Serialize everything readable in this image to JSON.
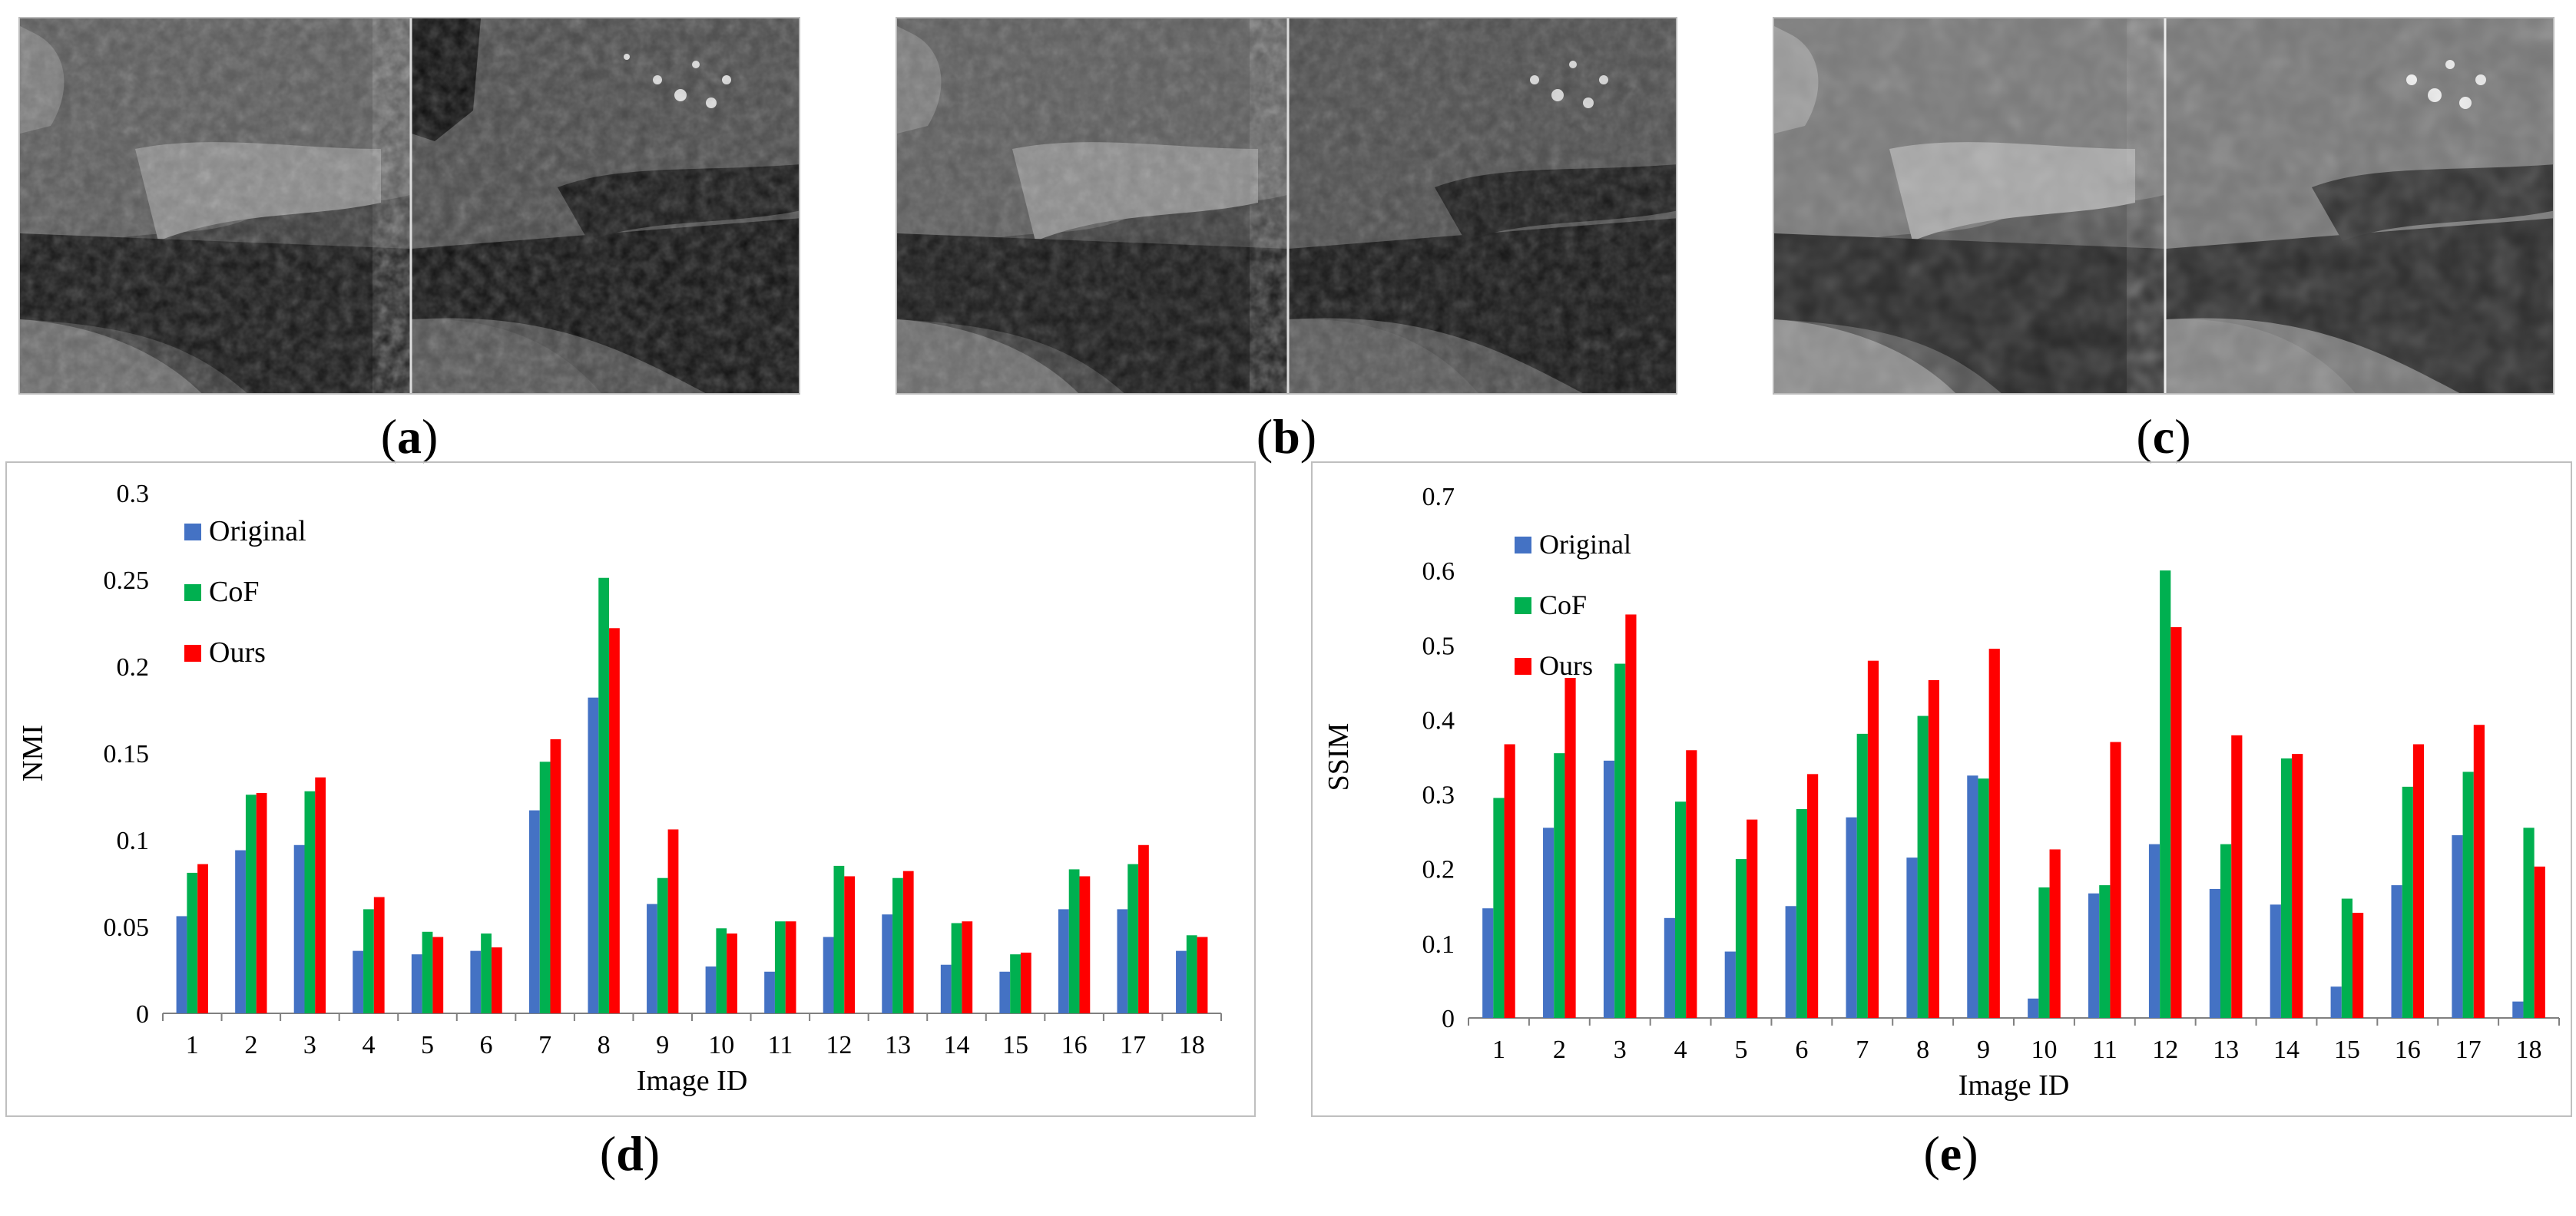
{
  "panels": [
    {
      "id": "a",
      "label": "a"
    },
    {
      "id": "b",
      "label": "b"
    },
    {
      "id": "c",
      "label": "c"
    },
    {
      "id": "d",
      "label": "d"
    },
    {
      "id": "e",
      "label": "e"
    }
  ],
  "colors": {
    "original": "#4472C4",
    "cof": "#00B050",
    "ours": "#FF0000"
  },
  "chart_data": [
    {
      "type": "bar",
      "panel": "d",
      "title": "",
      "xlabel": "Image ID",
      "ylabel": "NMI",
      "ylim": [
        0,
        0.3
      ],
      "yticks": [
        "0",
        "0.05",
        "0.1",
        "0.15",
        "0.2",
        "0.25",
        "0.3"
      ],
      "categories": [
        "1",
        "2",
        "3",
        "4",
        "5",
        "6",
        "7",
        "8",
        "9",
        "10",
        "11",
        "12",
        "13",
        "14",
        "15",
        "16",
        "17",
        "18"
      ],
      "legend_position": "top-left",
      "series": [
        {
          "name": "Original",
          "values": [
            0.056,
            0.094,
            0.097,
            0.036,
            0.034,
            0.036,
            0.117,
            0.182,
            0.063,
            0.027,
            0.024,
            0.044,
            0.057,
            0.028,
            0.024,
            0.06,
            0.06,
            0.036
          ]
        },
        {
          "name": "CoF",
          "values": [
            0.081,
            0.126,
            0.128,
            0.06,
            0.047,
            0.046,
            0.145,
            0.251,
            0.078,
            0.049,
            0.053,
            0.085,
            0.078,
            0.052,
            0.034,
            0.083,
            0.086,
            0.045
          ]
        },
        {
          "name": "Ours",
          "values": [
            0.086,
            0.127,
            0.136,
            0.067,
            0.044,
            0.038,
            0.158,
            0.222,
            0.106,
            0.046,
            0.053,
            0.079,
            0.082,
            0.053,
            0.035,
            0.079,
            0.097,
            0.044
          ]
        }
      ]
    },
    {
      "type": "bar",
      "panel": "e",
      "title": "",
      "xlabel": "Image ID",
      "ylabel": "SSIM",
      "ylim": [
        0,
        0.7
      ],
      "yticks": [
        "0",
        "0.1",
        "0.2",
        "0.3",
        "0.4",
        "0.5",
        "0.6",
        "0.7"
      ],
      "categories": [
        "1",
        "2",
        "3",
        "4",
        "5",
        "6",
        "7",
        "8",
        "9",
        "10",
        "11",
        "12",
        "13",
        "14",
        "15",
        "16",
        "17",
        "18"
      ],
      "legend_position": "top-left",
      "series": [
        {
          "name": "Original",
          "values": [
            0.147,
            0.255,
            0.345,
            0.134,
            0.089,
            0.15,
            0.269,
            0.215,
            0.325,
            0.026,
            0.167,
            0.233,
            0.173,
            0.152,
            0.042,
            0.178,
            0.245,
            0.022
          ]
        },
        {
          "name": "CoF",
          "values": [
            0.295,
            0.355,
            0.475,
            0.29,
            0.213,
            0.28,
            0.381,
            0.405,
            0.321,
            0.175,
            0.178,
            0.6,
            0.233,
            0.348,
            0.16,
            0.31,
            0.33,
            0.255
          ]
        },
        {
          "name": "Ours",
          "values": [
            0.367,
            0.456,
            0.541,
            0.359,
            0.266,
            0.327,
            0.479,
            0.453,
            0.495,
            0.226,
            0.37,
            0.524,
            0.379,
            0.354,
            0.141,
            0.367,
            0.393,
            0.203
          ]
        }
      ]
    }
  ]
}
